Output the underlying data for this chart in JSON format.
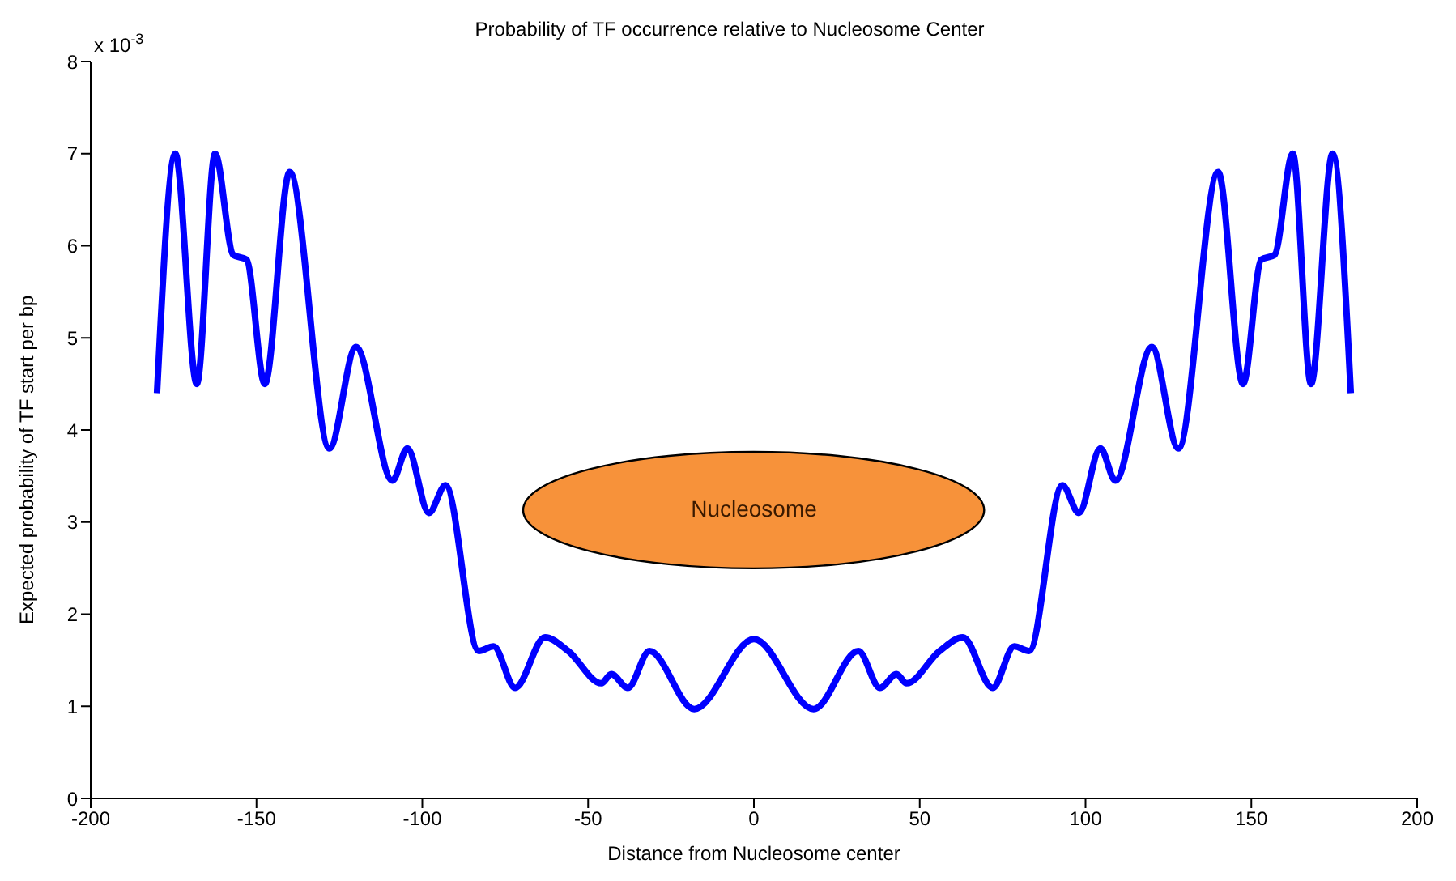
{
  "chart_data": {
    "type": "line",
    "title": "Probability of TF occurrence relative to Nucleosome Center",
    "xlabel": "Distance from Nucleosome center",
    "ylabel": "Expected probability of TF start per bp",
    "annotations": [
      "x 10$^{-3}$",
      "Nucleosome"
    ],
    "x": [
      -180,
      -174.5,
      -168,
      -162.5,
      -157,
      -153,
      -147.5,
      -140,
      -128,
      -120,
      -109,
      -104.5,
      -98,
      -93,
      -83,
      -78.5,
      -72,
      -63,
      -56,
      -46,
      -43,
      -38,
      -31.5,
      -18,
      0,
      18,
      31.5,
      38,
      43,
      46,
      56,
      63,
      72,
      78.5,
      83,
      93,
      98,
      104.5,
      109,
      120,
      128,
      140,
      147.5,
      153,
      157,
      162.5,
      168,
      174.5,
      180
    ],
    "series": [
      {
        "color": "#0000ff",
        "values": [
          4.4,
          7.0,
          4.5,
          7.0,
          5.9,
          5.85,
          4.5,
          6.8,
          3.8,
          4.9,
          3.45,
          3.8,
          3.1,
          3.4,
          1.6,
          1.65,
          1.2,
          1.75,
          1.6,
          1.25,
          1.35,
          1.2,
          1.6,
          0.97,
          1.73,
          0.97,
          1.6,
          1.2,
          1.35,
          1.25,
          1.6,
          1.75,
          1.2,
          1.65,
          1.6,
          3.4,
          3.1,
          3.8,
          3.45,
          4.9,
          3.8,
          6.8,
          4.5,
          5.85,
          5.9,
          7.0,
          4.5,
          7.0,
          4.4
        ]
      }
    ],
    "xlim": [
      -200,
      200
    ],
    "xticks": [
      -200,
      -150,
      -100,
      -50,
      0,
      50,
      100,
      150,
      200
    ],
    "ylim": [
      0,
      8
    ],
    "yticks": [
      0,
      1,
      2,
      3,
      4,
      5,
      6,
      7,
      8
    ],
    "grid": false,
    "legend": false,
    "marker": "none",
    "line_style": "solid"
  }
}
